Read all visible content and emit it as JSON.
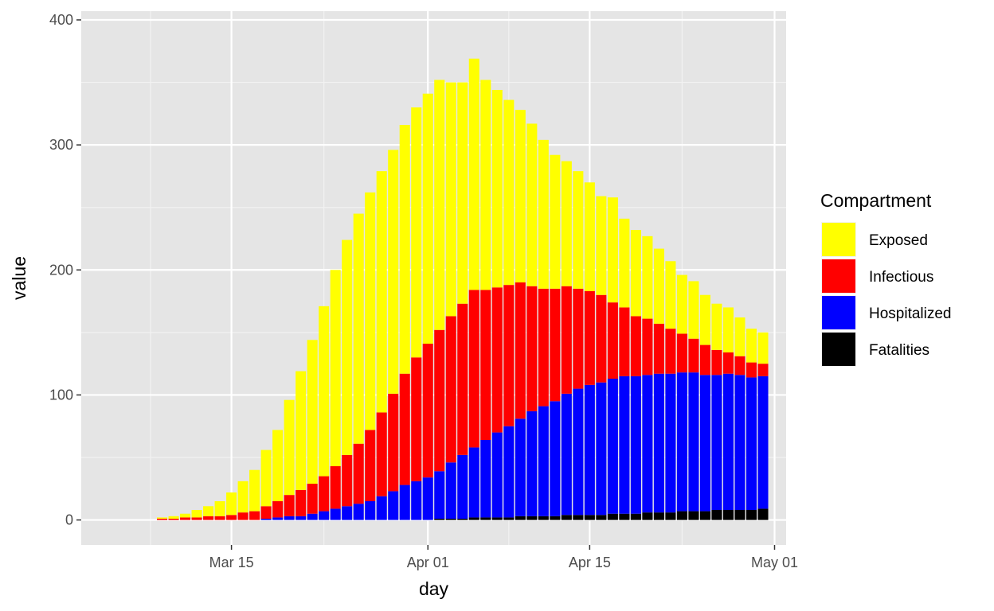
{
  "chart_data": {
    "type": "bar",
    "stacked": true,
    "xlabel": "day",
    "ylabel": "value",
    "ylim": [
      -20,
      407
    ],
    "y_ticks": [
      0,
      100,
      200,
      300,
      400
    ],
    "x_range": [
      "2020-03-02",
      "2020-05-02"
    ],
    "x_ticks": [
      {
        "date": "2020-03-15",
        "label": "Mar 15"
      },
      {
        "date": "2020-04-01",
        "label": "Apr 01"
      },
      {
        "date": "2020-04-15",
        "label": "Apr 15"
      },
      {
        "date": "2020-05-01",
        "label": "May 01"
      }
    ],
    "x_minor_ticks": [
      "2020-03-08",
      "2020-03-23",
      "2020-04-08",
      "2020-04-23"
    ],
    "grid": true,
    "background": "#E5E5E5",
    "legend": {
      "title": "Compartment",
      "position": "right"
    },
    "days": [
      "2020-03-09",
      "2020-03-10",
      "2020-03-11",
      "2020-03-12",
      "2020-03-13",
      "2020-03-14",
      "2020-03-15",
      "2020-03-16",
      "2020-03-17",
      "2020-03-18",
      "2020-03-19",
      "2020-03-20",
      "2020-03-21",
      "2020-03-22",
      "2020-03-23",
      "2020-03-24",
      "2020-03-25",
      "2020-03-26",
      "2020-03-27",
      "2020-03-28",
      "2020-03-29",
      "2020-03-30",
      "2020-03-31",
      "2020-04-01",
      "2020-04-02",
      "2020-04-03",
      "2020-04-04",
      "2020-04-05",
      "2020-04-06",
      "2020-04-07",
      "2020-04-08",
      "2020-04-09",
      "2020-04-10",
      "2020-04-11",
      "2020-04-12",
      "2020-04-13",
      "2020-04-14",
      "2020-04-15",
      "2020-04-16",
      "2020-04-17",
      "2020-04-18",
      "2020-04-19",
      "2020-04-20",
      "2020-04-21",
      "2020-04-22",
      "2020-04-23",
      "2020-04-24",
      "2020-04-25",
      "2020-04-26",
      "2020-04-27",
      "2020-04-28",
      "2020-04-29",
      "2020-04-30"
    ],
    "series": [
      {
        "name": "Fatalities",
        "color": "#000000",
        "values": [
          0,
          0,
          0,
          0,
          0,
          0,
          0,
          0,
          0,
          0,
          0,
          0,
          0,
          0,
          0,
          0,
          0,
          0,
          0,
          0,
          0,
          0,
          0,
          0,
          1,
          1,
          1,
          2,
          2,
          2,
          2,
          3,
          3,
          3,
          3,
          4,
          4,
          4,
          4,
          5,
          5,
          5,
          6,
          6,
          6,
          7,
          7,
          7,
          8,
          8,
          8,
          8,
          9
        ]
      },
      {
        "name": "Hospitalized",
        "color": "#0000FF",
        "values": [
          0,
          0,
          0,
          0,
          0,
          0,
          0,
          0,
          0,
          1,
          2,
          3,
          3,
          5,
          7,
          9,
          11,
          13,
          15,
          19,
          23,
          28,
          31,
          34,
          38,
          45,
          51,
          56,
          62,
          68,
          73,
          78,
          84,
          88,
          92,
          97,
          101,
          104,
          106,
          108,
          110,
          110,
          110,
          111,
          111,
          111,
          111,
          109,
          108,
          109,
          108,
          106,
          106
        ]
      },
      {
        "name": "Infectious",
        "color": "#FF0000",
        "values": [
          1,
          1,
          2,
          2,
          3,
          3,
          4,
          6,
          7,
          10,
          13,
          17,
          21,
          24,
          28,
          34,
          41,
          48,
          57,
          67,
          78,
          89,
          99,
          107,
          113,
          117,
          121,
          126,
          120,
          116,
          113,
          109,
          100,
          94,
          90,
          86,
          80,
          75,
          70,
          61,
          55,
          48,
          45,
          40,
          36,
          31,
          27,
          24,
          20,
          17,
          15,
          12,
          10
        ]
      },
      {
        "name": "Exposed",
        "color": "#FFFF00",
        "values": [
          1,
          2,
          3,
          6,
          8,
          12,
          18,
          25,
          33,
          45,
          57,
          76,
          95,
          115,
          136,
          157,
          172,
          184,
          190,
          193,
          195,
          199,
          200,
          200,
          200,
          187,
          177,
          185,
          168,
          158,
          148,
          138,
          130,
          119,
          107,
          100,
          94,
          87,
          79,
          84,
          71,
          69,
          66,
          60,
          54,
          47,
          46,
          40,
          37,
          36,
          31,
          27,
          25
        ]
      }
    ]
  }
}
